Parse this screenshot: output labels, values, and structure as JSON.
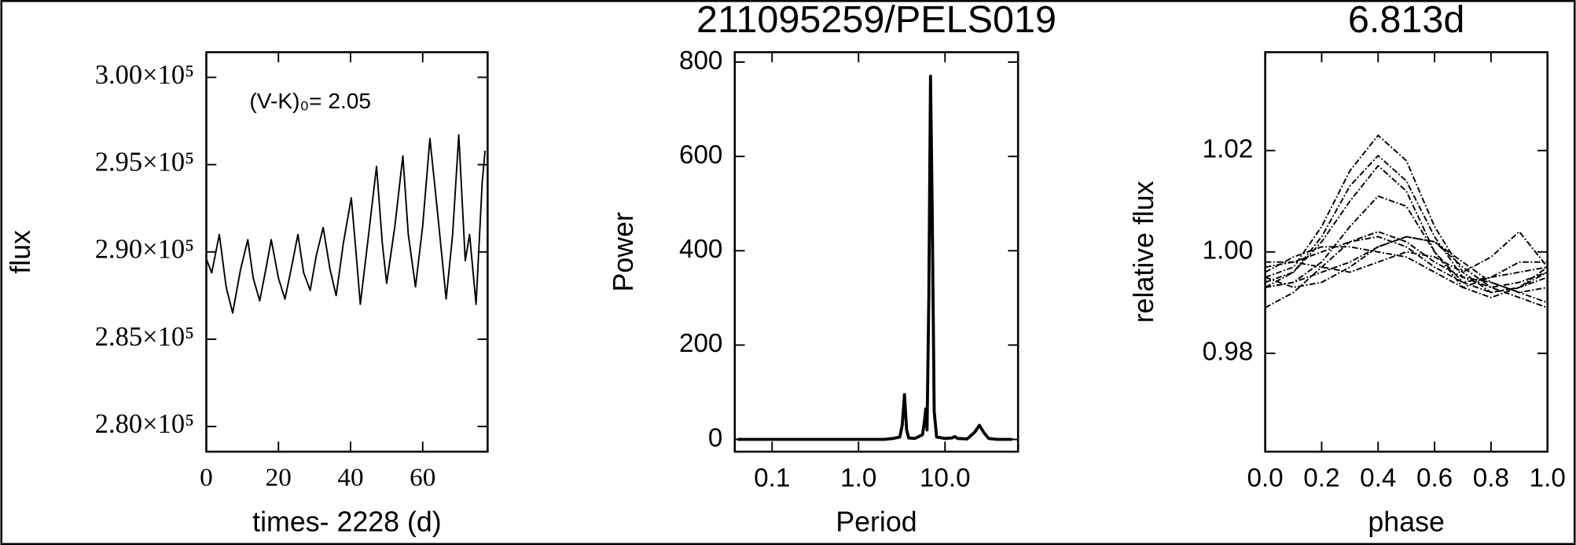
{
  "chart_data": [
    {
      "type": "line",
      "xlabel": "times- 2228 (d)",
      "ylabel": "flux",
      "annotation": "(V-K)₀= 2.05",
      "tick_font": "serif",
      "x": [
        0,
        1.5,
        3.6,
        5.5,
        7.3,
        9.5,
        11.5,
        13,
        14.8,
        16.5,
        18,
        20,
        21.8,
        23.5,
        25.4,
        27,
        28.8,
        30.5,
        32.4,
        34.3,
        36,
        38,
        40.2,
        41.5,
        42.7,
        45,
        47.2,
        48.8,
        50,
        52.3,
        54.5,
        56,
        58,
        60,
        62,
        64,
        66.5,
        68.3,
        70,
        71.8,
        73,
        74.8,
        76.5,
        77.3
      ],
      "values": [
        289600,
        288800,
        291000,
        288000,
        286500,
        289000,
        290700,
        288500,
        287200,
        289000,
        290700,
        288500,
        287300,
        289000,
        291000,
        288800,
        287800,
        289800,
        291400,
        289000,
        287500,
        290500,
        293100,
        290000,
        287000,
        291000,
        294900,
        290500,
        288200,
        291500,
        295500,
        291000,
        288000,
        291500,
        296500,
        292500,
        287300,
        291000,
        296700,
        289500,
        291000,
        287000,
        294000,
        295800
      ],
      "color": "#000000",
      "line_width": 1.5,
      "xlim": [
        0,
        78
      ],
      "ylim": [
        278560,
        301440
      ],
      "xticks": [
        0,
        20,
        40,
        60
      ],
      "yticks": [
        {
          "value": 280000,
          "label": "2.80×10⁵"
        },
        {
          "value": 285000,
          "label": "2.85×10⁵"
        },
        {
          "value": 290000,
          "label": "2.90×10⁵"
        },
        {
          "value": 295000,
          "label": "2.95×10⁵"
        },
        {
          "value": 300000,
          "label": "3.00×10⁵"
        }
      ]
    },
    {
      "type": "line",
      "title": "211095259/PELS019",
      "xlabel": "Period",
      "ylabel": "Power",
      "xscale": "log",
      "x": [
        0.04,
        0.5,
        1,
        2,
        2.5,
        3,
        3.2,
        3.4,
        3.6,
        3.8,
        4.5,
        5.5,
        5.8,
        6.0,
        6.2,
        6.5,
        6.8,
        7.1,
        7.5,
        8,
        10,
        12,
        13,
        14,
        18,
        22,
        25,
        28,
        32,
        40,
        60
      ],
      "values": [
        0,
        0,
        0,
        0,
        2,
        5,
        30,
        95,
        20,
        3,
        2,
        10,
        40,
        65,
        20,
        300,
        770,
        500,
        60,
        5,
        2,
        3,
        6,
        2,
        1,
        15,
        30,
        15,
        2,
        0,
        0
      ],
      "color": "#000000",
      "line_width": 3,
      "xlim": [
        0.037,
        70
      ],
      "ylim": [
        -26,
        821
      ],
      "xticks": [
        0.1,
        {
          "value": 1,
          "label": "1.0"
        },
        {
          "value": 10,
          "label": "10.0"
        }
      ],
      "yticks": [
        0,
        200,
        400,
        600,
        800
      ]
    },
    {
      "type": "line",
      "title": "6.813d",
      "xlabel": "phase",
      "ylabel": "relative flux",
      "linestyle": "dashdot",
      "x": [
        0,
        0.1,
        0.2,
        0.3,
        0.4,
        0.5,
        0.6,
        0.7,
        0.8,
        0.9,
        1
      ],
      "series": [
        {
          "color": "#000000",
          "values": [
            0.995,
            0.997,
            1.005,
            1.016,
            1.023,
            1.018,
            1.005,
            0.996,
            0.992,
            0.993,
            0.997
          ]
        },
        {
          "color": "#000000",
          "values": [
            0.993,
            0.996,
            1.003,
            1.013,
            1.019,
            1.014,
            1.003,
            0.995,
            0.993,
            0.994,
            0.996
          ]
        },
        {
          "color": "#000000",
          "values": [
            0.994,
            0.996,
            1.002,
            1.01,
            1.017,
            1.012,
            1,
            0.994,
            0.992,
            0.993,
            0.995
          ]
        },
        {
          "color": "#000000",
          "values": [
            0.993,
            0.994,
            0.998,
            1.005,
            1.011,
            1.009,
            1,
            0.993,
            0.991,
            0.993,
            0.996
          ]
        },
        {
          "color": "#000000",
          "values": [
            0.989,
            0.992,
            0.997,
            1.002,
            1.004,
            1.002,
            0.998,
            0.995,
            0.994,
            0.992,
            0.99
          ]
        },
        {
          "color": "#000000",
          "values": [
            0.997,
            0.998,
            1,
            1.002,
            1.003,
            1.001,
            0.997,
            0.994,
            0.995,
            0.996,
            0.997
          ]
        },
        {
          "color": "#000000",
          "values": [
            0.996,
            0.999,
            1.001,
            1.001,
            1,
            0.999,
            0.996,
            0.993,
            0.995,
            0.998,
            0.998
          ]
        },
        {
          "color": "#000000",
          "values": [
            0.998,
            0.998,
            0.997,
            0.996,
            0.998,
            1,
            0.999,
            0.996,
            0.999,
            1.004,
            0.997
          ]
        },
        {
          "color": "#000000",
          "values": [
            0.993,
            0.994,
            0.996,
            0.998,
            1.001,
            1.003,
            1.002,
            0.997,
            0.993,
            0.991,
            0.989
          ]
        },
        {
          "color": "#000000",
          "values": [
            0.995,
            0.993,
            0.994,
            0.997,
            1.001,
            1.003,
            1.002,
            0.998,
            0.994,
            0.992,
            0.993
          ]
        }
      ],
      "line_width": 1.5,
      "xlim": [
        0,
        1
      ],
      "ylim": [
        0.9606,
        1.0394
      ],
      "xticks": [
        {
          "value": 0,
          "label": "0.0"
        },
        0.2,
        0.4,
        0.6,
        0.8,
        {
          "value": 1,
          "label": "1.0"
        }
      ],
      "yticks": [
        0.98,
        {
          "value": 1,
          "label": "1.00"
        },
        1.02
      ]
    }
  ]
}
